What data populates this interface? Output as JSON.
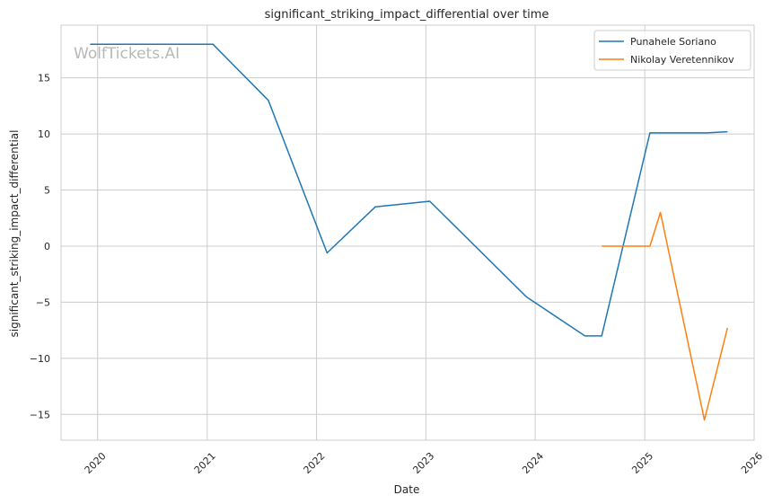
{
  "chart_data": {
    "type": "line",
    "title": "significant_striking_impact_differential over time",
    "xlabel": "Date",
    "ylabel": "significant_striking_impact_differential",
    "watermark": "WolfTickets.AI",
    "x_ticks": [
      "2020",
      "2021",
      "2022",
      "2023",
      "2024",
      "2025",
      "2026"
    ],
    "y_ticks": [
      -15,
      -10,
      -5,
      0,
      5,
      10,
      15
    ],
    "xlim": [
      "2019-09-01",
      "2026-01-01"
    ],
    "ylim": [
      -17.3,
      19.7
    ],
    "grid": true,
    "legend_position": "top-right",
    "series": [
      {
        "name": "Punahele Soriano",
        "color": "#1f77b4",
        "points": [
          {
            "x": "2019-12-07",
            "y": 18.0
          },
          {
            "x": "2021-01-20",
            "y": 18.0
          },
          {
            "x": "2021-07-24",
            "y": 13.0
          },
          {
            "x": "2022-02-05",
            "y": -0.6
          },
          {
            "x": "2022-07-16",
            "y": 3.5
          },
          {
            "x": "2023-01-14",
            "y": 4.0
          },
          {
            "x": "2023-12-02",
            "y": -4.5
          },
          {
            "x": "2024-06-15",
            "y": -8.0
          },
          {
            "x": "2024-08-10",
            "y": -8.0
          },
          {
            "x": "2025-01-18",
            "y": 10.1
          },
          {
            "x": "2025-07-26",
            "y": 10.1
          },
          {
            "x": "2025-10-04",
            "y": 10.2
          }
        ]
      },
      {
        "name": "Nikolay Veretennikov",
        "color": "#ff7f0e",
        "points": [
          {
            "x": "2024-08-10",
            "y": 0.0
          },
          {
            "x": "2025-01-18",
            "y": 0.0
          },
          {
            "x": "2025-02-22",
            "y": 3.0
          },
          {
            "x": "2025-07-19",
            "y": -15.5
          },
          {
            "x": "2025-10-04",
            "y": -7.3
          }
        ]
      }
    ]
  }
}
